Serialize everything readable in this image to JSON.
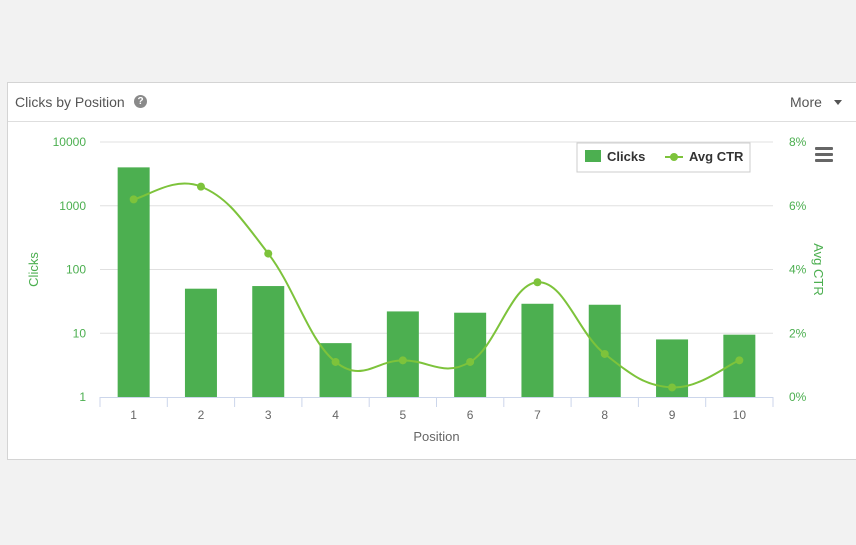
{
  "card": {
    "title": "Clicks by Position",
    "more_label": "More"
  },
  "colors": {
    "bar": "#4caf50",
    "line": "#7dc33b",
    "axis_text": "#4caf50",
    "grid": "#e0e0e0"
  },
  "icons": {
    "help": "question-circle",
    "menu": "hamburger-menu"
  },
  "chart_data": {
    "type": "bar",
    "categories": [
      "1",
      "2",
      "3",
      "4",
      "5",
      "6",
      "7",
      "8",
      "9",
      "10"
    ],
    "xlabel": "Position",
    "y_left": {
      "label": "Clicks",
      "scale": "log",
      "ticks": [
        "1",
        "10",
        "100",
        "1000",
        "10000"
      ]
    },
    "y_right": {
      "label": "Avg CTR",
      "ticks": [
        "0%",
        "2%",
        "4%",
        "6%",
        "8%"
      ],
      "range": [
        0,
        8
      ]
    },
    "series": [
      {
        "name": "Clicks",
        "type": "bar",
        "values": [
          4000,
          50,
          55,
          7,
          22,
          21,
          29,
          28,
          8,
          9.5
        ]
      },
      {
        "name": "Avg CTR",
        "type": "spline",
        "values": [
          6.2,
          6.6,
          4.5,
          1.1,
          1.15,
          1.1,
          3.6,
          1.35,
          0.3,
          1.15
        ]
      }
    ],
    "legend": [
      "Clicks",
      "Avg CTR"
    ],
    "legend_position": "top-right"
  }
}
